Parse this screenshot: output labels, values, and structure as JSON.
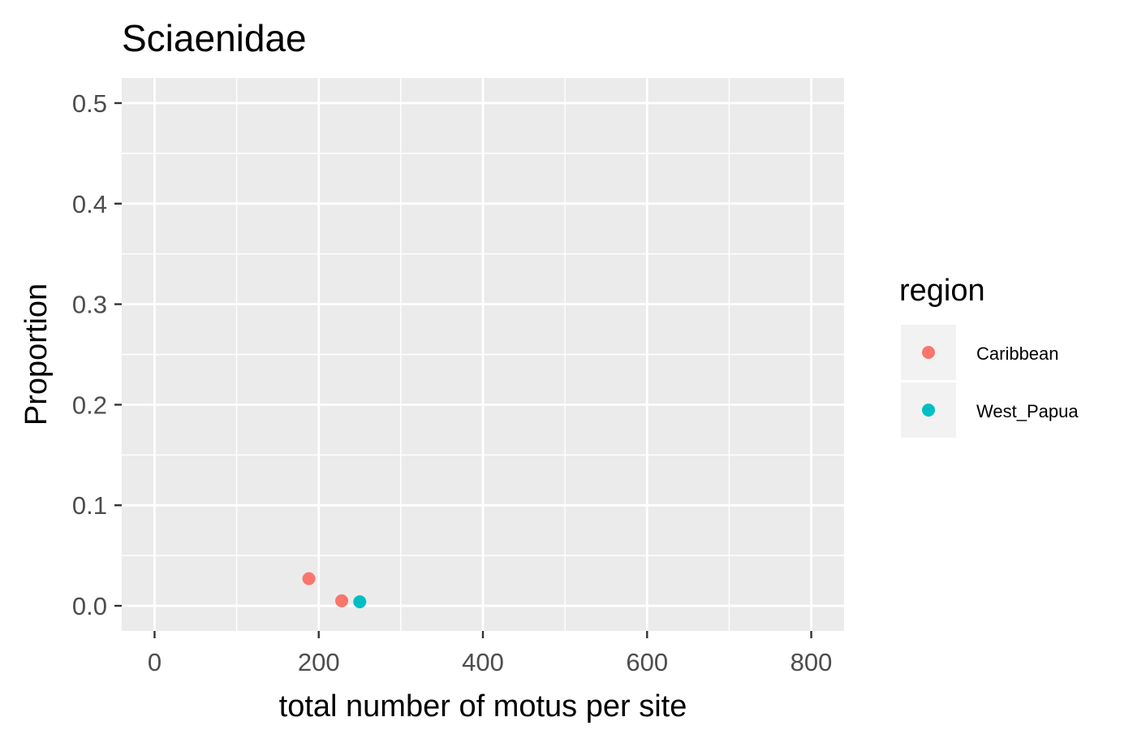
{
  "chart_data": {
    "type": "scatter",
    "title": "Sciaenidae",
    "xlabel": "total number of motus per site",
    "ylabel": "Proportion",
    "xlim": [
      -40,
      840
    ],
    "ylim": [
      -0.025,
      0.525
    ],
    "x_ticks": [
      0,
      200,
      400,
      600,
      800
    ],
    "x_tick_labels": [
      "0",
      "200",
      "400",
      "600",
      "800"
    ],
    "y_ticks": [
      0.0,
      0.1,
      0.2,
      0.3,
      0.4,
      0.5
    ],
    "y_tick_labels": [
      "0.0",
      "0.1",
      "0.2",
      "0.3",
      "0.4",
      "0.5"
    ],
    "grid": true,
    "background": "#ebebeb",
    "legend": {
      "title": "region",
      "position": "right"
    },
    "series": [
      {
        "name": "Caribbean",
        "color": "#f8766d",
        "points": [
          {
            "x": 188,
            "y": 0.027
          },
          {
            "x": 228,
            "y": 0.005
          }
        ]
      },
      {
        "name": "West_Papua",
        "color": "#00bfc4",
        "points": [
          {
            "x": 250,
            "y": 0.004
          }
        ]
      }
    ]
  }
}
